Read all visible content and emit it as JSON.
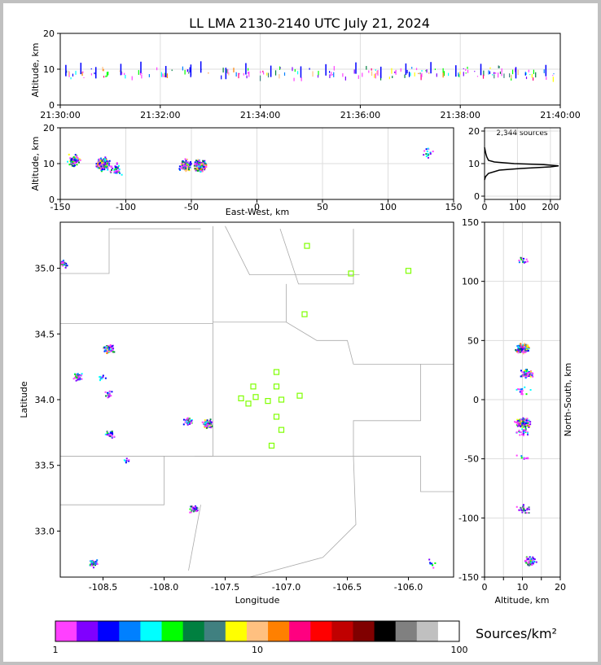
{
  "title": "LL LMA 2130-2140 UTC July 21, 2024",
  "colors": {
    "frame": "#c0c0c0",
    "grid": "#dddddd",
    "border": "#aaaaaa",
    "station": "#7fff00",
    "curve": "#000000"
  },
  "chart_data": [
    {
      "id": "time_height",
      "type": "scatter",
      "ylabel": "Altitude, km",
      "ylim": [
        0,
        20
      ],
      "yticks": [
        "0",
        "10",
        "20"
      ],
      "xticks": [
        "21:30:00",
        "21:32:00",
        "21:34:00",
        "21:36:00",
        "21:38:00",
        "21:40:00"
      ],
      "xlim_minutes": [
        0,
        10
      ],
      "series": [
        {
          "x": [
            0.1,
            0.4,
            0.7,
            1.2,
            1.6,
            2.1,
            2.6,
            2.8,
            3.3,
            3.7,
            4.2,
            4.8,
            5.3,
            5.9,
            6.4,
            6.9,
            7.4,
            7.9,
            8.4,
            9.1,
            9.7
          ],
          "y": [
            9.2,
            9.8,
            8.6,
            9.5,
            10.1,
            8.9,
            9.3,
            10.2,
            8.4,
            9.7,
            9.0,
            8.8,
            9.4,
            9.9,
            8.7,
            9.6,
            10.0,
            9.1,
            9.5,
            8.6,
            9.2
          ]
        }
      ]
    },
    {
      "id": "ew_height",
      "type": "scatter",
      "xlabel": "East-West, km",
      "ylabel": "Altitude, km",
      "xlim": [
        -150,
        150
      ],
      "ylim": [
        0,
        20
      ],
      "xticks": [
        "-150",
        "-100",
        "-50",
        "0",
        "50",
        "100",
        "150"
      ],
      "yticks": [
        "0",
        "10",
        "20"
      ],
      "clusters": [
        {
          "x": -140,
          "y": 11,
          "n": 90
        },
        {
          "x": -118,
          "y": 10,
          "n": 260
        },
        {
          "x": -108,
          "y": 8.5,
          "n": 40
        },
        {
          "x": -55,
          "y": 9.5,
          "n": 120
        },
        {
          "x": -44,
          "y": 9.6,
          "n": 180
        },
        {
          "x": 130,
          "y": 13,
          "n": 15
        }
      ]
    },
    {
      "id": "altitude_histogram",
      "type": "line",
      "annotation": "2,344 sources",
      "xlim": [
        0,
        230
      ],
      "ylim": [
        -1,
        21
      ],
      "xticks": [
        "0",
        "100",
        "200"
      ],
      "yticks": [
        "0",
        "10",
        "20"
      ],
      "profile": [
        {
          "alt": 5,
          "count": 0
        },
        {
          "alt": 6,
          "count": 3
        },
        {
          "alt": 7,
          "count": 12
        },
        {
          "alt": 8,
          "count": 45
        },
        {
          "alt": 8.5,
          "count": 110
        },
        {
          "alt": 9,
          "count": 200
        },
        {
          "alt": 9.3,
          "count": 225
        },
        {
          "alt": 9.7,
          "count": 180
        },
        {
          "alt": 10,
          "count": 90
        },
        {
          "alt": 10.5,
          "count": 30
        },
        {
          "alt": 11,
          "count": 12
        },
        {
          "alt": 12,
          "count": 7
        },
        {
          "alt": 13,
          "count": 4
        },
        {
          "alt": 14,
          "count": 2
        },
        {
          "alt": 15,
          "count": 0
        }
      ]
    },
    {
      "id": "plan_view",
      "type": "scatter",
      "xlabel": "Longitude",
      "ylabel": "Latitude",
      "xlim": [
        -108.85,
        -105.63
      ],
      "ylim": [
        32.65,
        35.35
      ],
      "xticks": [
        "-108.5",
        "-108.0",
        "-107.5",
        "-107.0",
        "-106.5",
        "-106.0"
      ],
      "yticks": [
        "33.0",
        "33.5",
        "34.0",
        "34.5",
        "35.0"
      ],
      "clusters": [
        {
          "lon": -108.83,
          "lat": 35.04,
          "n": 25
        },
        {
          "lon": -108.71,
          "lat": 34.18,
          "n": 40
        },
        {
          "lon": -108.52,
          "lat": 34.17,
          "n": 12
        },
        {
          "lon": -108.46,
          "lat": 34.39,
          "n": 160
        },
        {
          "lon": -108.46,
          "lat": 34.05,
          "n": 15
        },
        {
          "lon": -108.45,
          "lat": 33.74,
          "n": 25
        },
        {
          "lon": -108.31,
          "lat": 33.55,
          "n": 8
        },
        {
          "lon": -107.8,
          "lat": 33.84,
          "n": 40
        },
        {
          "lon": -107.65,
          "lat": 33.82,
          "n": 120
        },
        {
          "lon": -107.76,
          "lat": 33.17,
          "n": 30
        },
        {
          "lon": -108.58,
          "lat": 32.76,
          "n": 35
        },
        {
          "lon": -105.82,
          "lat": 32.76,
          "n": 8
        }
      ],
      "stations": [
        {
          "lon": -106.83,
          "lat": 35.17
        },
        {
          "lon": -106.47,
          "lat": 34.96
        },
        {
          "lon": -106.0,
          "lat": 34.98
        },
        {
          "lon": -106.85,
          "lat": 34.65
        },
        {
          "lon": -107.08,
          "lat": 34.21
        },
        {
          "lon": -107.27,
          "lat": 34.1
        },
        {
          "lon": -107.08,
          "lat": 34.1
        },
        {
          "lon": -107.37,
          "lat": 34.01
        },
        {
          "lon": -107.31,
          "lat": 33.97
        },
        {
          "lon": -107.25,
          "lat": 34.02
        },
        {
          "lon": -107.15,
          "lat": 33.99
        },
        {
          "lon": -107.04,
          "lat": 34.0
        },
        {
          "lon": -106.89,
          "lat": 34.03
        },
        {
          "lon": -107.08,
          "lat": 33.87
        },
        {
          "lon": -107.04,
          "lat": 33.77
        },
        {
          "lon": -107.12,
          "lat": 33.65
        }
      ]
    },
    {
      "id": "ns_height",
      "type": "scatter",
      "xlabel": "Altitude, km",
      "ylabel": "North-South, km",
      "xlim": [
        0,
        20
      ],
      "ylim": [
        -150,
        150
      ],
      "xticks": [
        "0",
        "5",
        "10",
        "15",
        "20"
      ],
      "yticks": [
        "-150",
        "-100",
        "-50",
        "0",
        "50",
        "100",
        "150"
      ],
      "clusters": [
        {
          "x": 10,
          "y": 118,
          "n": 15
        },
        {
          "x": 10,
          "y": 44,
          "n": 150
        },
        {
          "x": 11,
          "y": 23,
          "n": 60
        },
        {
          "x": 10,
          "y": 8,
          "n": 15
        },
        {
          "x": 10,
          "y": -19,
          "n": 180
        },
        {
          "x": 10,
          "y": -27,
          "n": 30
        },
        {
          "x": 10,
          "y": -48,
          "n": 10
        },
        {
          "x": 10,
          "y": -92,
          "n": 25
        },
        {
          "x": 12,
          "y": -136,
          "n": 50
        }
      ]
    },
    {
      "id": "colorbar",
      "type": "heatmap",
      "label": "Sources/km²",
      "ticks": [
        "1",
        "10",
        "100"
      ],
      "colors": [
        "#ff40ff",
        "#8000ff",
        "#0000ff",
        "#0080ff",
        "#00ffff",
        "#00ff00",
        "#008040",
        "#408080",
        "#ffff00",
        "#ffc080",
        "#ff8000",
        "#ff0080",
        "#ff0000",
        "#c00000",
        "#800000",
        "#000000",
        "#808080",
        "#c0c0c0",
        "#ffffff"
      ]
    }
  ]
}
